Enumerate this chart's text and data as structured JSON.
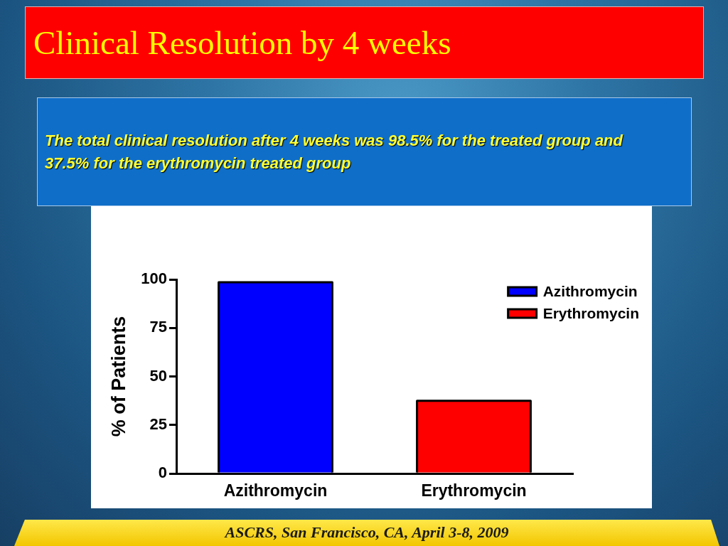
{
  "chart_data": {
    "type": "bar",
    "title": "Clinical Resolution by 4 weeks",
    "subtitle": "The total clinical resolution after 4 weeks was 98.5% for the treated group and 37.5% for the erythromycin treated group",
    "annotations": [
      "ASCRS, San Francisco, CA, April 3-8, 2009"
    ],
    "categories": [
      "Azithromycin",
      "Erythromycin"
    ],
    "series": [
      {
        "name": "Azithromycin",
        "color": "#0000ff",
        "values": [
          98.5,
          null
        ]
      },
      {
        "name": "Erythromycin",
        "color": "#ff0000",
        "values": [
          null,
          37.5
        ]
      }
    ],
    "ylabel": "% of Patients",
    "ylim": [
      0,
      100
    ],
    "yticks": [
      0,
      25,
      50,
      75,
      100
    ],
    "legend": "top right"
  }
}
